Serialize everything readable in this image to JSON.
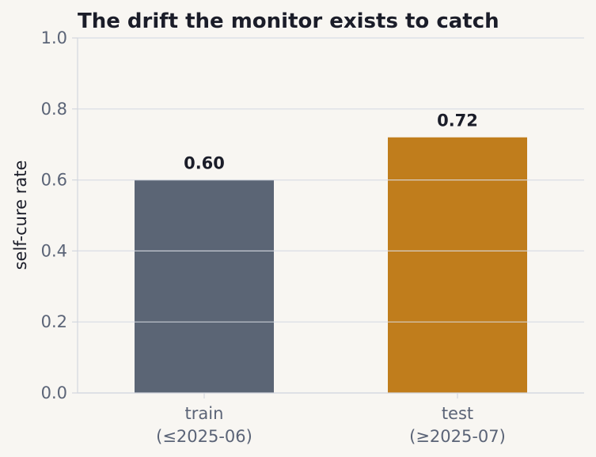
{
  "chart_data": {
    "type": "bar",
    "title": "The drift the monitor exists to catch",
    "xlabel": "",
    "ylabel": "self-cure rate",
    "categories": [
      [
        "train",
        "(≤2025-06)"
      ],
      [
        "test",
        "(≥2025-07)"
      ]
    ],
    "values": [
      0.6,
      0.72
    ],
    "data_labels": [
      "0.60",
      "0.72"
    ],
    "bar_colors": [
      "#5b6575",
      "#c07d1c"
    ],
    "ylim": [
      0,
      1.0
    ],
    "yticks": [
      "0.0",
      "0.2",
      "0.4",
      "0.6",
      "0.8",
      "1.0"
    ],
    "grid": true,
    "legend": "none"
  }
}
